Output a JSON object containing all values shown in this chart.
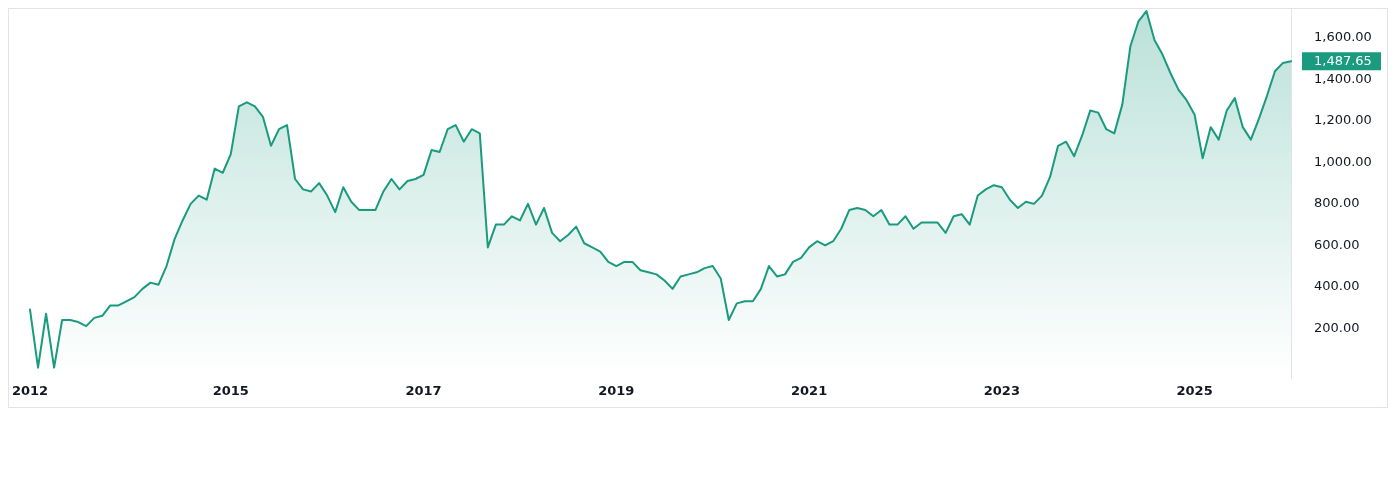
{
  "chart_data": {
    "type": "area",
    "categories": [
      "2012",
      null,
      null,
      null,
      null,
      null,
      null,
      null,
      null,
      null,
      null,
      null,
      null,
      null,
      null,
      null,
      null,
      null,
      null,
      null,
      null,
      null,
      null,
      null,
      null,
      "2015",
      null,
      null,
      null,
      null,
      null,
      null,
      null,
      null,
      null,
      null,
      null,
      null,
      null,
      null,
      null,
      null,
      null,
      null,
      null,
      null,
      null,
      null,
      null,
      "2017",
      null,
      null,
      null,
      null,
      null,
      null,
      null,
      null,
      null,
      null,
      null,
      null,
      null,
      null,
      null,
      null,
      null,
      null,
      null,
      null,
      null,
      null,
      null,
      "2019",
      null,
      null,
      null,
      null,
      null,
      null,
      null,
      null,
      null,
      null,
      null,
      null,
      null,
      null,
      null,
      null,
      null,
      null,
      null,
      null,
      null,
      null,
      null,
      "2021",
      null,
      null,
      null,
      null,
      null,
      null,
      null,
      null,
      null,
      null,
      null,
      null,
      null,
      null,
      null,
      null,
      null,
      null,
      null,
      null,
      null,
      null,
      null,
      "2023",
      null,
      null,
      null,
      null,
      null,
      null,
      null,
      null,
      null,
      null,
      null,
      null,
      null,
      null,
      null,
      null,
      null,
      null,
      null,
      null,
      null,
      null,
      null,
      "2025",
      null,
      null,
      null,
      null,
      null,
      null,
      null,
      null,
      null,
      null,
      null,
      null
    ],
    "values": [
      290,
      10,
      270,
      10,
      240,
      240,
      230,
      210,
      250,
      260,
      310,
      310,
      330,
      350,
      390,
      420,
      410,
      500,
      630,
      720,
      800,
      840,
      820,
      970,
      950,
      1040,
      1270,
      1290,
      1270,
      1220,
      1080,
      1160,
      1180,
      920,
      870,
      860,
      900,
      840,
      760,
      880,
      810,
      770,
      770,
      770,
      860,
      920,
      870,
      910,
      920,
      940,
      1060,
      1050,
      1160,
      1180,
      1100,
      1160,
      1140,
      590,
      700,
      700,
      740,
      720,
      800,
      700,
      780,
      660,
      620,
      650,
      690,
      610,
      590,
      570,
      520,
      500,
      520,
      520,
      480,
      470,
      460,
      430,
      390,
      450,
      460,
      470,
      490,
      500,
      440,
      240,
      320,
      330,
      330,
      390,
      500,
      450,
      460,
      520,
      540,
      590,
      620,
      600,
      620,
      680,
      770,
      780,
      770,
      740,
      770,
      700,
      700,
      740,
      680,
      710,
      710,
      710,
      660,
      740,
      750,
      700,
      840,
      870,
      890,
      880,
      820,
      780,
      810,
      800,
      840,
      930,
      1080,
      1100,
      1030,
      1130,
      1250,
      1240,
      1160,
      1140,
      1280,
      1560,
      1680,
      1730,
      1590,
      1520,
      1430,
      1350,
      1300,
      1230,
      1020,
      1170,
      1110,
      1250,
      1310,
      1170,
      1110,
      1210,
      1320,
      1440,
      1480,
      1487.65
    ],
    "color": "#1a9a7e",
    "ylim": [
      -40,
      1740
    ],
    "yticks": [
      {
        "value": 200,
        "label": "200.00"
      },
      {
        "value": 400,
        "label": "400.00"
      },
      {
        "value": 600,
        "label": "600.00"
      },
      {
        "value": 800,
        "label": "800.00"
      },
      {
        "value": 1000,
        "label": "1,000.00"
      },
      {
        "value": 1200,
        "label": "1,200.00"
      },
      {
        "value": 1400,
        "label": "1,400.00"
      },
      {
        "value": 1600,
        "label": "1,600.00"
      }
    ],
    "annotations": [
      "1,487.65"
    ]
  }
}
